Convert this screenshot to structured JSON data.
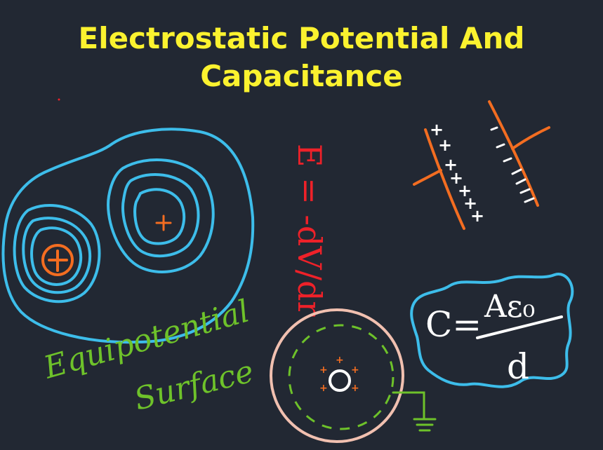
{
  "title": {
    "line1": "Electrostatic Potential And",
    "line2": "Capacitance"
  },
  "annotations": {
    "equipotential_line1": "Equipotential",
    "equipotential_line2": "Surface",
    "field_relation": "E = -dV/dr",
    "capacitance_formula_lhs": "C=",
    "capacitance_numerator": "Aε₀",
    "capacitance_denominator": "d",
    "plus_sign": "+",
    "minus_sign": "-"
  },
  "colors": {
    "background": "#222833",
    "title": "#fbf22f",
    "blue_lines": "#3dbdea",
    "orange": "#f36d21",
    "red": "#ee2129",
    "green": "#6ec22a",
    "white": "#ffffff",
    "pink": "#f1c0b0"
  }
}
